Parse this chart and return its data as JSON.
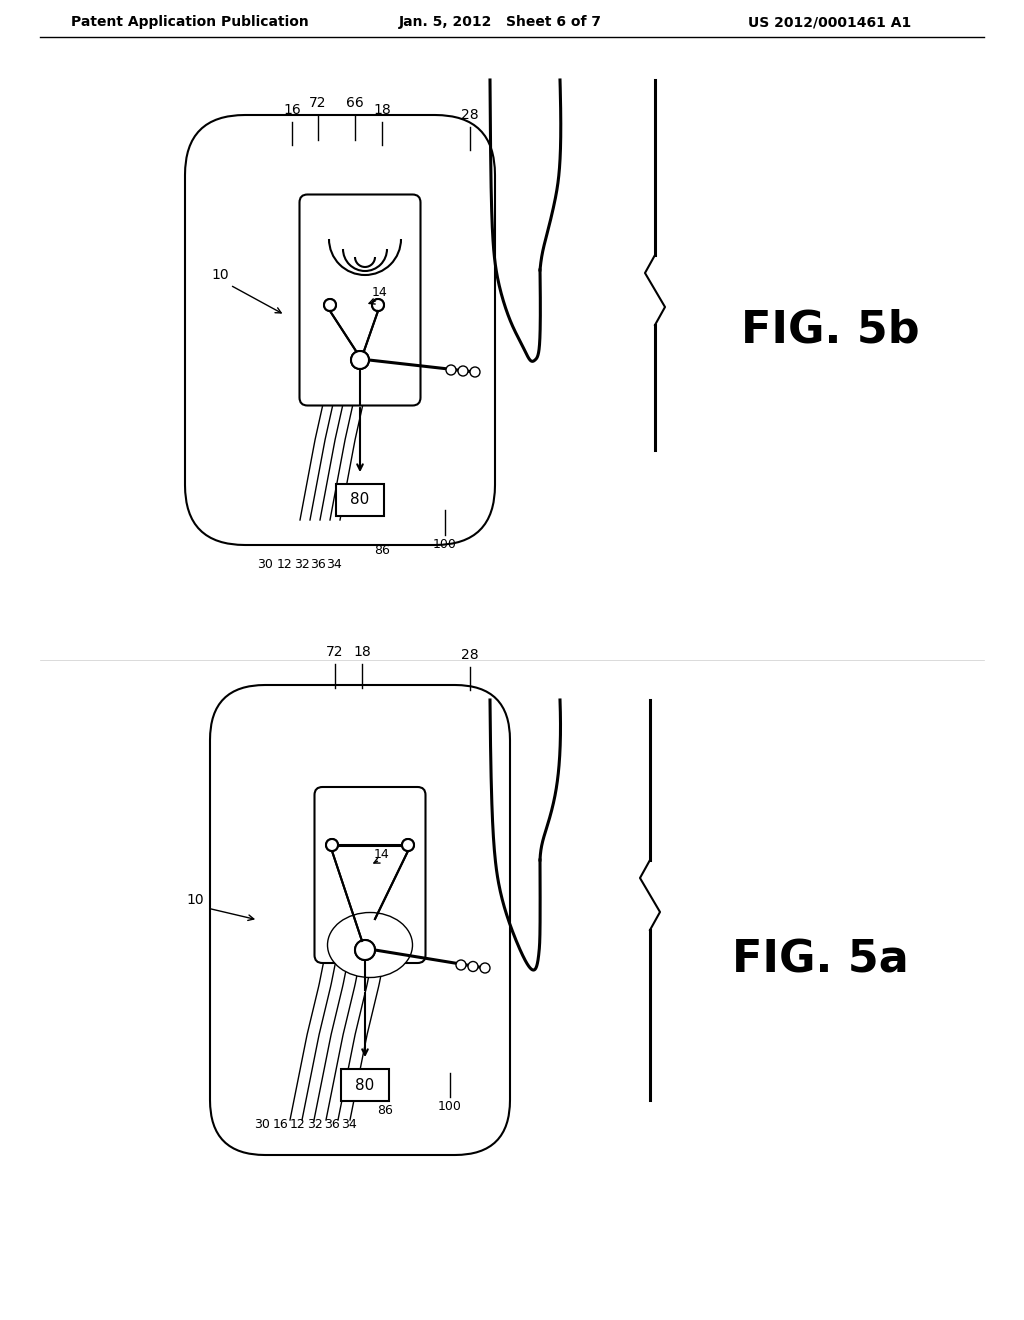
{
  "background_color": "#ffffff",
  "line_color": "#000000",
  "header_left": "Patent Application Publication",
  "header_center": "Jan. 5, 2012   Sheet 6 of 7",
  "header_right": "US 2012/0001461 A1",
  "fig_label_5b": "FIG. 5b",
  "fig_label_5a": "FIG. 5a",
  "header_fontsize": 10.5,
  "fig_label_fontsize": 32
}
